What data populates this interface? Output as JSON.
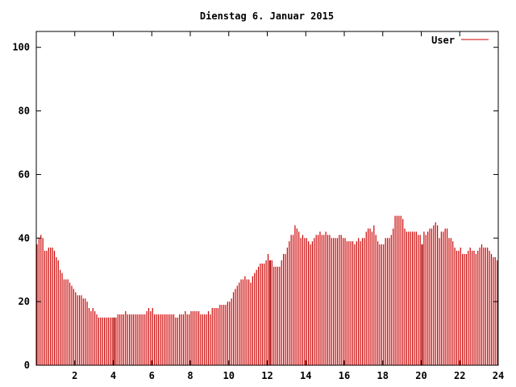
{
  "chart_data": {
    "type": "bar",
    "title": "Dienstag 6. Januar 2015",
    "xlabel": "",
    "ylabel": "",
    "xlim": [
      0,
      24
    ],
    "ylim": [
      0,
      105
    ],
    "x_ticks": [
      2,
      4,
      6,
      8,
      10,
      12,
      14,
      16,
      18,
      20,
      22,
      24
    ],
    "y_ticks": [
      0,
      20,
      40,
      60,
      80,
      100
    ],
    "grid": false,
    "legend_position": "top-right",
    "colors": {
      "series": "#cc0000",
      "axis": "#000000",
      "background": "#ffffff"
    },
    "series": [
      {
        "name": "User",
        "points": [
          [
            0.0,
            38
          ],
          [
            0.1,
            40
          ],
          [
            0.2,
            41
          ],
          [
            0.3,
            40
          ],
          [
            0.4,
            36
          ],
          [
            0.5,
            36
          ],
          [
            0.6,
            37
          ],
          [
            0.7,
            37
          ],
          [
            0.8,
            37
          ],
          [
            0.9,
            36
          ],
          [
            1.0,
            34
          ],
          [
            1.1,
            33
          ],
          [
            1.2,
            30
          ],
          [
            1.3,
            29
          ],
          [
            1.4,
            27
          ],
          [
            1.5,
            27
          ],
          [
            1.6,
            27
          ],
          [
            1.7,
            26
          ],
          [
            1.8,
            25
          ],
          [
            1.9,
            24
          ],
          [
            2.0,
            23
          ],
          [
            2.1,
            22
          ],
          [
            2.2,
            22
          ],
          [
            2.3,
            22
          ],
          [
            2.4,
            21
          ],
          [
            2.5,
            21
          ],
          [
            2.6,
            20
          ],
          [
            2.7,
            18
          ],
          [
            2.8,
            17
          ],
          [
            2.9,
            18
          ],
          [
            3.0,
            17
          ],
          [
            3.1,
            16
          ],
          [
            3.2,
            15
          ],
          [
            3.3,
            15
          ],
          [
            3.4,
            15
          ],
          [
            3.5,
            15
          ],
          [
            3.6,
            15
          ],
          [
            3.7,
            15
          ],
          [
            3.8,
            15
          ],
          [
            3.9,
            15
          ],
          [
            4.0,
            15
          ],
          [
            4.1,
            15
          ],
          [
            4.2,
            16
          ],
          [
            4.3,
            16
          ],
          [
            4.4,
            16
          ],
          [
            4.5,
            16
          ],
          [
            4.6,
            17
          ],
          [
            4.7,
            16
          ],
          [
            4.8,
            16
          ],
          [
            4.9,
            16
          ],
          [
            5.0,
            16
          ],
          [
            5.1,
            16
          ],
          [
            5.2,
            16
          ],
          [
            5.3,
            16
          ],
          [
            5.4,
            16
          ],
          [
            5.5,
            16
          ],
          [
            5.6,
            16
          ],
          [
            5.7,
            17
          ],
          [
            5.8,
            18
          ],
          [
            5.9,
            17
          ],
          [
            6.0,
            18
          ],
          [
            6.1,
            16
          ],
          [
            6.2,
            16
          ],
          [
            6.3,
            16
          ],
          [
            6.4,
            16
          ],
          [
            6.5,
            16
          ],
          [
            6.6,
            16
          ],
          [
            6.7,
            16
          ],
          [
            6.8,
            16
          ],
          [
            6.9,
            16
          ],
          [
            7.0,
            16
          ],
          [
            7.1,
            16
          ],
          [
            7.2,
            15
          ],
          [
            7.3,
            15
          ],
          [
            7.4,
            16
          ],
          [
            7.5,
            16
          ],
          [
            7.6,
            16
          ],
          [
            7.7,
            17
          ],
          [
            7.8,
            16
          ],
          [
            7.9,
            16
          ],
          [
            8.0,
            17
          ],
          [
            8.1,
            17
          ],
          [
            8.2,
            17
          ],
          [
            8.3,
            17
          ],
          [
            8.4,
            17
          ],
          [
            8.5,
            16
          ],
          [
            8.6,
            16
          ],
          [
            8.7,
            16
          ],
          [
            8.8,
            16
          ],
          [
            8.9,
            17
          ],
          [
            9.0,
            16
          ],
          [
            9.1,
            18
          ],
          [
            9.2,
            18
          ],
          [
            9.3,
            18
          ],
          [
            9.4,
            18
          ],
          [
            9.5,
            19
          ],
          [
            9.6,
            19
          ],
          [
            9.7,
            19
          ],
          [
            9.8,
            19
          ],
          [
            9.9,
            20
          ],
          [
            10.0,
            20
          ],
          [
            10.1,
            21
          ],
          [
            10.2,
            23
          ],
          [
            10.3,
            24
          ],
          [
            10.4,
            25
          ],
          [
            10.5,
            26
          ],
          [
            10.6,
            27
          ],
          [
            10.7,
            27
          ],
          [
            10.8,
            28
          ],
          [
            10.9,
            27
          ],
          [
            11.0,
            27
          ],
          [
            11.1,
            26
          ],
          [
            11.2,
            28
          ],
          [
            11.3,
            29
          ],
          [
            11.4,
            30
          ],
          [
            11.5,
            31
          ],
          [
            11.6,
            32
          ],
          [
            11.7,
            32
          ],
          [
            11.8,
            32
          ],
          [
            11.9,
            33
          ],
          [
            12.0,
            35
          ],
          [
            12.1,
            33
          ],
          [
            12.2,
            33
          ],
          [
            12.3,
            31
          ],
          [
            12.4,
            31
          ],
          [
            12.5,
            31
          ],
          [
            12.6,
            31
          ],
          [
            12.7,
            33
          ],
          [
            12.8,
            35
          ],
          [
            12.9,
            35
          ],
          [
            13.0,
            37
          ],
          [
            13.1,
            39
          ],
          [
            13.2,
            41
          ],
          [
            13.3,
            41
          ],
          [
            13.4,
            44
          ],
          [
            13.5,
            43
          ],
          [
            13.6,
            42
          ],
          [
            13.7,
            40
          ],
          [
            13.8,
            41
          ],
          [
            13.9,
            40
          ],
          [
            14.0,
            40
          ],
          [
            14.1,
            39
          ],
          [
            14.2,
            38
          ],
          [
            14.3,
            39
          ],
          [
            14.4,
            40
          ],
          [
            14.5,
            41
          ],
          [
            14.6,
            41
          ],
          [
            14.7,
            42
          ],
          [
            14.8,
            41
          ],
          [
            14.9,
            41
          ],
          [
            15.0,
            42
          ],
          [
            15.1,
            41
          ],
          [
            15.2,
            41
          ],
          [
            15.3,
            40
          ],
          [
            15.4,
            40
          ],
          [
            15.5,
            40
          ],
          [
            15.6,
            40
          ],
          [
            15.7,
            41
          ],
          [
            15.8,
            41
          ],
          [
            15.9,
            40
          ],
          [
            16.0,
            40
          ],
          [
            16.1,
            39
          ],
          [
            16.2,
            39
          ],
          [
            16.3,
            39
          ],
          [
            16.4,
            39
          ],
          [
            16.5,
            38
          ],
          [
            16.6,
            39
          ],
          [
            16.7,
            40
          ],
          [
            16.8,
            39
          ],
          [
            16.9,
            40
          ],
          [
            17.0,
            40
          ],
          [
            17.1,
            42
          ],
          [
            17.2,
            43
          ],
          [
            17.3,
            43
          ],
          [
            17.4,
            42
          ],
          [
            17.5,
            44
          ],
          [
            17.6,
            41
          ],
          [
            17.7,
            39
          ],
          [
            17.8,
            38
          ],
          [
            17.9,
            38
          ],
          [
            18.0,
            38
          ],
          [
            18.1,
            40
          ],
          [
            18.2,
            40
          ],
          [
            18.3,
            40
          ],
          [
            18.4,
            41
          ],
          [
            18.5,
            43
          ],
          [
            18.6,
            47
          ],
          [
            18.7,
            47
          ],
          [
            18.8,
            47
          ],
          [
            18.9,
            47
          ],
          [
            19.0,
            46
          ],
          [
            19.1,
            43
          ],
          [
            19.2,
            42
          ],
          [
            19.3,
            42
          ],
          [
            19.4,
            42
          ],
          [
            19.5,
            42
          ],
          [
            19.6,
            42
          ],
          [
            19.7,
            42
          ],
          [
            19.8,
            41
          ],
          [
            19.9,
            41
          ],
          [
            20.0,
            38
          ],
          [
            20.1,
            42
          ],
          [
            20.2,
            41
          ],
          [
            20.3,
            42
          ],
          [
            20.4,
            43
          ],
          [
            20.5,
            43
          ],
          [
            20.6,
            44
          ],
          [
            20.7,
            45
          ],
          [
            20.8,
            44
          ],
          [
            20.9,
            40
          ],
          [
            21.0,
            42
          ],
          [
            21.1,
            42
          ],
          [
            21.2,
            43
          ],
          [
            21.3,
            43
          ],
          [
            21.4,
            40
          ],
          [
            21.5,
            40
          ],
          [
            21.6,
            39
          ],
          [
            21.7,
            37
          ],
          [
            21.8,
            36
          ],
          [
            21.9,
            36
          ],
          [
            22.0,
            37
          ],
          [
            22.1,
            35
          ],
          [
            22.2,
            35
          ],
          [
            22.3,
            35
          ],
          [
            22.4,
            36
          ],
          [
            22.5,
            37
          ],
          [
            22.6,
            36
          ],
          [
            22.7,
            36
          ],
          [
            22.8,
            35
          ],
          [
            22.9,
            36
          ],
          [
            23.0,
            37
          ],
          [
            23.1,
            38
          ],
          [
            23.2,
            37
          ],
          [
            23.3,
            37
          ],
          [
            23.4,
            37
          ],
          [
            23.5,
            36
          ],
          [
            23.6,
            35
          ],
          [
            23.7,
            34
          ],
          [
            23.8,
            34
          ],
          [
            23.9,
            33
          ]
        ]
      }
    ],
    "highlight_bars": [
      {
        "x": 4.0,
        "value": 15
      },
      {
        "x": 12.1,
        "value": 33
      },
      {
        "x": 20.0,
        "value": 38
      }
    ]
  }
}
